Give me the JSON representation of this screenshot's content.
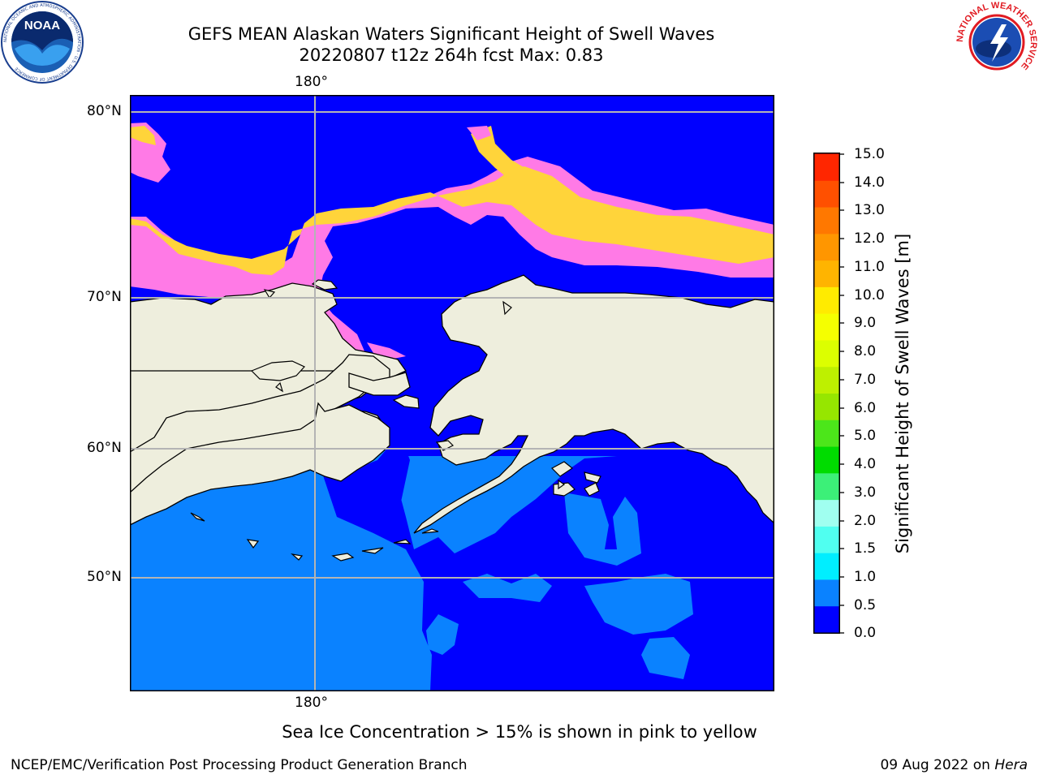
{
  "title": {
    "line1": "GEFS MEAN Alaskan Waters Significant Height of Swell Waves",
    "line2": "20220807 t12z 264h fcst   Max: 0.83"
  },
  "map": {
    "lon_label_top": "180°",
    "lon_label_bottom": "180°",
    "lat_labels": [
      "80°N",
      "70°N",
      "60°N",
      "50°N"
    ],
    "colors": {
      "land": "#eeeedd",
      "ocean_0_0.5": "#0000ff",
      "ocean_0.5_1.0": "#0a82ff",
      "ice_pink": "#ff7ae6",
      "ice_yellow": "#ffd43a",
      "grid": "#b4b4b4"
    }
  },
  "colorbar": {
    "label": "Significant Height of Swell Waves [m]",
    "ticks": [
      "15.0",
      "14.0",
      "13.0",
      "12.0",
      "11.0",
      "10.0",
      "9.0",
      "8.0",
      "7.0",
      "6.0",
      "5.0",
      "4.0",
      "3.0",
      "2.0",
      "1.5",
      "1.0",
      "0.5",
      "0.0"
    ],
    "colors_top_to_bottom": [
      "#ff0000",
      "#ff2600",
      "#ff5000",
      "#ff7800",
      "#ff9600",
      "#ffb400",
      "#ffeb00",
      "#f5ff00",
      "#dcff00",
      "#bef000",
      "#96e600",
      "#4ce61a",
      "#00dc00",
      "#3cf078",
      "#a0fff0",
      "#50fff0",
      "#00eeff",
      "#0a82ff",
      "#0000ff"
    ]
  },
  "caption": "Sea Ice Concentration > 15% is shown in pink to yellow",
  "footer": {
    "left": "NCEP/EMC/Verification Post Processing Product Generation Branch",
    "right_date": "09 Aug 2022 on ",
    "right_machine": "Hera"
  },
  "logos": {
    "noaa": "NOAA",
    "noaa_ring_text": "NATIONAL OCEANIC AND ATMOSPHERIC ADMINISTRATION · U.S. DEPARTMENT OF COMMERCE",
    "nws_ring_text": "NATIONAL WEATHER SERVICE"
  }
}
